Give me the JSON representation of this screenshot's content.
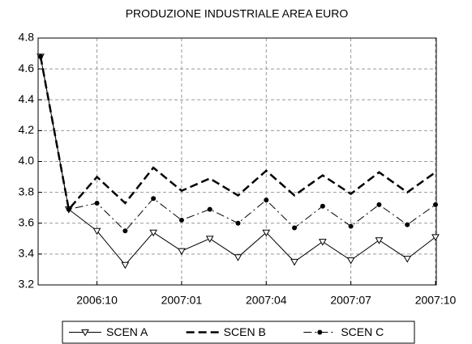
{
  "chart_data": {
    "type": "line",
    "title": "PRODUZIONE INDUSTRIALE AREA EURO",
    "categories": [
      null,
      null,
      "2006:10",
      null,
      null,
      "2007:01",
      null,
      null,
      "2007:04",
      null,
      null,
      "2007:07",
      null,
      null,
      "2007:10"
    ],
    "series": [
      {
        "name": "SCEN A",
        "color": "#000000",
        "style": "solid",
        "marker": "triangle",
        "values": [
          4.68,
          3.69,
          3.55,
          3.33,
          3.54,
          3.42,
          3.5,
          3.38,
          3.54,
          3.35,
          3.48,
          3.36,
          3.49,
          3.37,
          3.51
        ]
      },
      {
        "name": "SCEN B",
        "color": "#000000",
        "style": "dashed",
        "values": [
          4.68,
          3.69,
          3.9,
          3.73,
          3.96,
          3.81,
          3.89,
          3.78,
          3.94,
          3.78,
          3.91,
          3.79,
          3.93,
          3.8,
          3.93
        ]
      },
      {
        "name": "SCEN C",
        "color": "#000000",
        "style": "dashdot",
        "marker": "circle",
        "values": [
          4.68,
          3.69,
          3.73,
          3.55,
          3.76,
          3.62,
          3.69,
          3.6,
          3.75,
          3.57,
          3.71,
          3.58,
          3.72,
          3.59,
          3.72
        ]
      }
    ],
    "ylim": [
      3.2,
      4.8
    ],
    "yticks": [
      3.2,
      3.4,
      3.6,
      3.8,
      {
        "value": 4,
        "label": "4.0"
      },
      4.2,
      4.4,
      4.6,
      4.8
    ],
    "grid": true,
    "legend": "bottom"
  }
}
